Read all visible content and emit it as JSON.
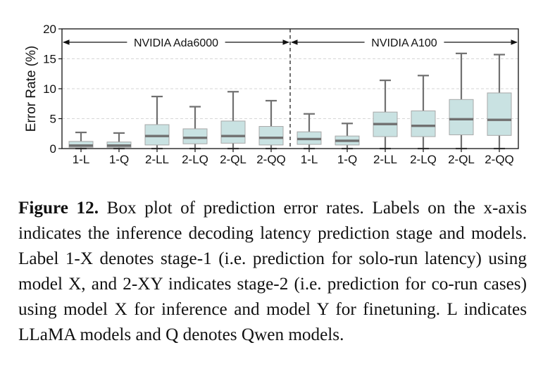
{
  "chart_data": {
    "type": "box",
    "ylabel": "Error Rate (%)",
    "ylim": [
      0,
      20
    ],
    "yticks": [
      0,
      5,
      10,
      15,
      20
    ],
    "grid": "horizontal-dashed",
    "box_color": "#c9e2e2",
    "median_color": "#707070",
    "groups": [
      {
        "name": "NVIDIA Ada6000",
        "categories": [
          "1-L",
          "1-Q",
          "2-LL",
          "2-LQ",
          "2-QL",
          "2-QQ"
        ]
      },
      {
        "name": "NVIDIA A100",
        "categories": [
          "1-L",
          "1-Q",
          "2-LL",
          "2-LQ",
          "2-QL",
          "2-QQ"
        ]
      }
    ],
    "boxes": [
      {
        "group": "NVIDIA Ada6000",
        "label": "1-L",
        "whisker_low": 0,
        "q1": 0.2,
        "median": 0.5,
        "q3": 1.2,
        "whisker_high": 2.7
      },
      {
        "group": "NVIDIA Ada6000",
        "label": "1-Q",
        "whisker_low": 0,
        "q1": 0.2,
        "median": 0.5,
        "q3": 1.1,
        "whisker_high": 2.6
      },
      {
        "group": "NVIDIA Ada6000",
        "label": "2-LL",
        "whisker_low": 0,
        "q1": 0.6,
        "median": 2.1,
        "q3": 4.0,
        "whisker_high": 8.7
      },
      {
        "group": "NVIDIA Ada6000",
        "label": "2-LQ",
        "whisker_low": 0,
        "q1": 0.8,
        "median": 1.8,
        "q3": 3.3,
        "whisker_high": 7.0
      },
      {
        "group": "NVIDIA Ada6000",
        "label": "2-QL",
        "whisker_low": 0,
        "q1": 0.9,
        "median": 2.1,
        "q3": 4.6,
        "whisker_high": 9.5
      },
      {
        "group": "NVIDIA Ada6000",
        "label": "2-QQ",
        "whisker_low": 0,
        "q1": 0.6,
        "median": 1.8,
        "q3": 3.7,
        "whisker_high": 8.0
      },
      {
        "group": "NVIDIA A100",
        "label": "1-L",
        "whisker_low": 0,
        "q1": 0.7,
        "median": 1.6,
        "q3": 2.8,
        "whisker_high": 5.8
      },
      {
        "group": "NVIDIA A100",
        "label": "1-Q",
        "whisker_low": 0,
        "q1": 0.6,
        "median": 1.3,
        "q3": 2.1,
        "whisker_high": 4.2
      },
      {
        "group": "NVIDIA A100",
        "label": "2-LL",
        "whisker_low": 0,
        "q1": 2.0,
        "median": 4.1,
        "q3": 6.1,
        "whisker_high": 11.4
      },
      {
        "group": "NVIDIA A100",
        "label": "2-LQ",
        "whisker_low": 0,
        "q1": 2.0,
        "median": 3.8,
        "q3": 6.3,
        "whisker_high": 12.2
      },
      {
        "group": "NVIDIA A100",
        "label": "2-QL",
        "whisker_low": 0,
        "q1": 2.3,
        "median": 4.9,
        "q3": 8.2,
        "whisker_high": 15.9
      },
      {
        "group": "NVIDIA A100",
        "label": "2-QQ",
        "whisker_low": 0,
        "q1": 2.2,
        "median": 4.8,
        "q3": 9.3,
        "whisker_high": 15.7
      }
    ]
  },
  "caption": {
    "label": "Figure 12.",
    "text": "Box plot of prediction error rates. Labels on the x-axis indicates the inference decoding latency prediction stage and models. Label 1-X denotes stage-1 (i.e. prediction for solo-run latency) using model X, and 2-XY indicates stage-2 (i.e. prediction for co-run cases) using model X for inference and model Y for finetuning. L indicates LLaMA models and Q denotes Qwen models."
  }
}
